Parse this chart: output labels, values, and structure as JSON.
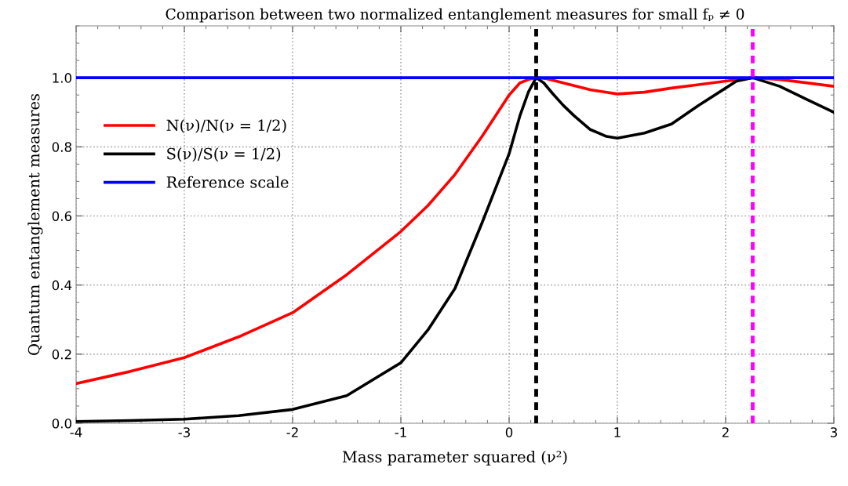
{
  "chart_data": {
    "type": "line",
    "title": "Comparison between two normalized entanglement measures for small fₚ ≠ 0",
    "xlabel": "Mass parameter squared (ν²)",
    "ylabel": "Quantum entanglement measures",
    "xlim": [
      -4,
      3
    ],
    "xticks": [
      -4,
      -3,
      -2,
      -1,
      0,
      1,
      2,
      3
    ],
    "ylim": [
      0,
      1.15
    ],
    "yticks": [
      {
        "value": 0,
        "label": "0.0"
      },
      0.2,
      0.4,
      0.6,
      0.8,
      {
        "value": 1,
        "label": "1.0"
      }
    ],
    "grid": true,
    "legend": "left",
    "line_style": "solid",
    "marker": "none",
    "series": [
      {
        "name": "N(ν)/N(ν = 1/2)",
        "color": "#ff0000",
        "x": [
          -4,
          -3.5,
          -3,
          -2.5,
          -2,
          -1.5,
          -1,
          -0.75,
          -0.5,
          -0.25,
          0,
          0.1,
          0.18,
          0.25,
          0.35,
          0.5,
          0.75,
          1,
          1.25,
          1.5,
          1.75,
          2,
          2.25,
          2.5,
          3
        ],
        "values": [
          0.115,
          0.15,
          0.19,
          0.25,
          0.32,
          0.43,
          0.555,
          0.63,
          0.72,
          0.83,
          0.95,
          0.985,
          0.995,
          1.0,
          0.997,
          0.985,
          0.965,
          0.953,
          0.958,
          0.97,
          0.98,
          0.99,
          1.0,
          0.995,
          0.975
        ]
      },
      {
        "name": "S(ν)/S(ν = 1/2)",
        "color": "#000000",
        "x": [
          -4,
          -3.5,
          -3,
          -2.5,
          -2,
          -1.5,
          -1,
          -0.75,
          -0.5,
          -0.25,
          -0.1,
          0,
          0.1,
          0.18,
          0.25,
          0.32,
          0.4,
          0.5,
          0.6,
          0.75,
          0.9,
          1,
          1.25,
          1.5,
          1.75,
          2,
          2.1,
          2.25,
          2.5,
          2.75,
          3
        ],
        "values": [
          0.005,
          0.008,
          0.012,
          0.022,
          0.04,
          0.08,
          0.175,
          0.27,
          0.39,
          0.58,
          0.7,
          0.78,
          0.89,
          0.96,
          1.0,
          0.985,
          0.955,
          0.92,
          0.89,
          0.85,
          0.83,
          0.825,
          0.84,
          0.866,
          0.92,
          0.97,
          0.99,
          1.0,
          0.975,
          0.937,
          0.9
        ]
      },
      {
        "name": "Reference scale",
        "color": "#0000ff",
        "x": [
          -4,
          3
        ],
        "values": [
          1,
          1
        ]
      }
    ],
    "ref_lines": [
      {
        "axis": "x",
        "value": 0.25,
        "color": "#000000",
        "line_style": "dashed"
      },
      {
        "axis": "x",
        "value": 2.25,
        "color": "#ff00ff",
        "line_style": "dashed"
      }
    ]
  }
}
